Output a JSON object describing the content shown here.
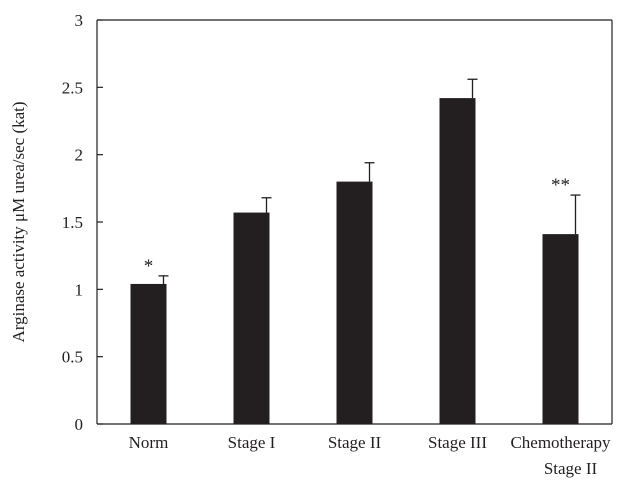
{
  "chart_data": {
    "type": "bar",
    "title": "",
    "ylabel": "Arginase activity μM urea/sec (kat)",
    "xlabel": "",
    "ylim": [
      0,
      3
    ],
    "yticks": [
      "0",
      "0.5",
      "1",
      "1.5",
      "2",
      "2.5",
      "3"
    ],
    "yticks_values": [
      0,
      0.5,
      1,
      1.5,
      2,
      2.5,
      3
    ],
    "categories": [
      [
        "Norm"
      ],
      [
        "Stage I"
      ],
      [
        "Stage II"
      ],
      [
        "Stage III"
      ],
      [
        "Chemotherapy",
        "Stage II"
      ]
    ],
    "values": [
      1.04,
      1.57,
      1.8,
      2.42,
      1.41
    ],
    "error_upper": [
      0.06,
      0.11,
      0.14,
      0.14,
      0.29
    ],
    "significance": [
      "*",
      "",
      "",
      "",
      "**"
    ],
    "grid": false,
    "colors": {
      "bar": "#231f20",
      "axis": "#231f20",
      "text": "#231f20"
    }
  }
}
